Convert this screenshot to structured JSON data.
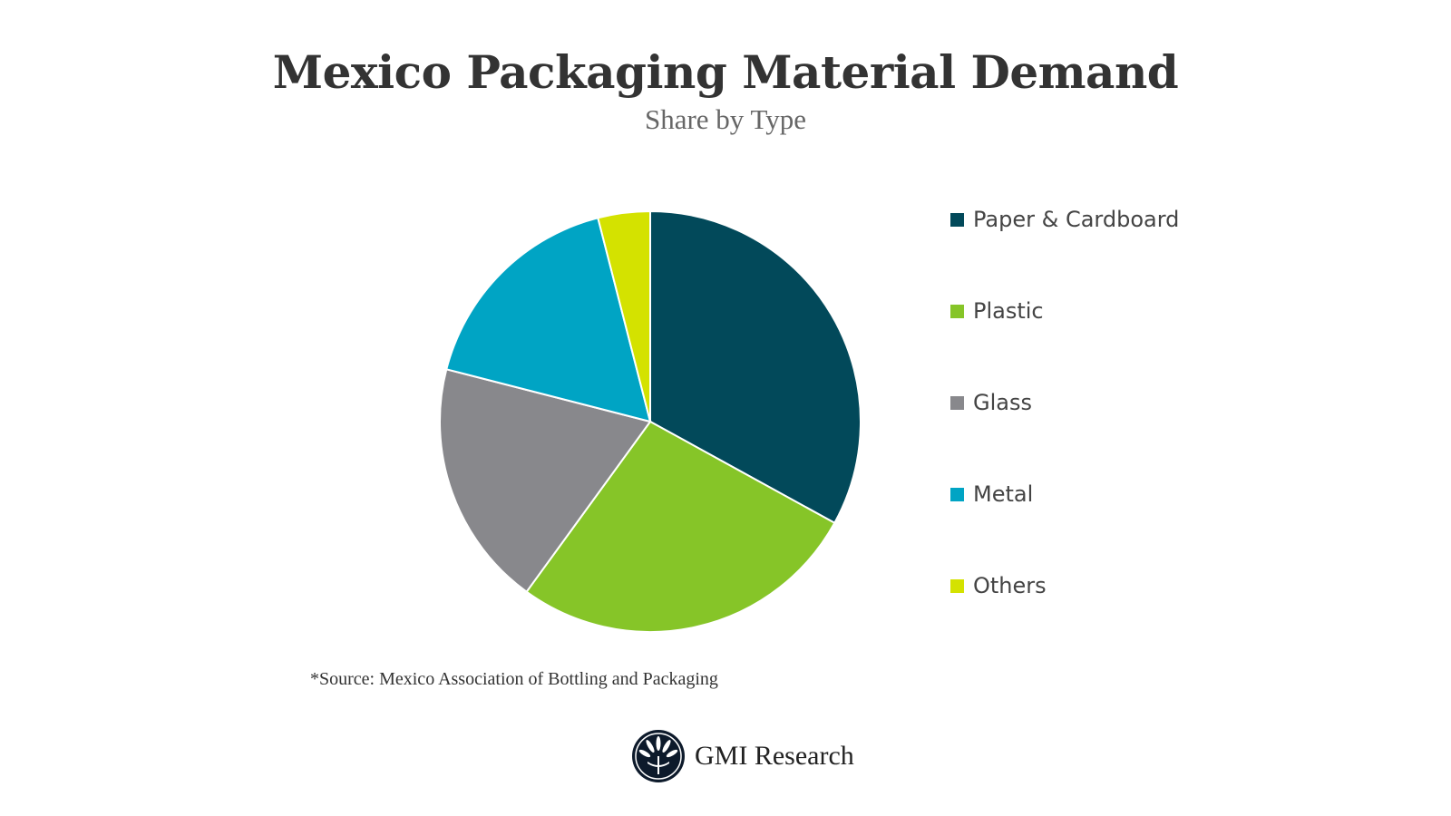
{
  "chart_data": {
    "type": "pie",
    "title": "Mexico Packaging Material Demand",
    "subtitle": "Share by Type",
    "categories": [
      "Paper & Cardboard",
      "Plastic",
      "Glass",
      "Metal",
      "Others"
    ],
    "values": [
      33,
      27,
      19,
      17,
      4
    ],
    "unit": "percent share (estimated, no labels printed)",
    "colors": [
      "#02495a",
      "#86c528",
      "#88888c",
      "#00a4c4",
      "#d4e200"
    ],
    "legend": "right",
    "start_angle": "12 o'clock, clockwise"
  },
  "source": "*Source: Mexico Association of Bottling and Packaging",
  "logo": {
    "text": "GMI Research",
    "icon": "gmi-fan-logo-icon"
  }
}
